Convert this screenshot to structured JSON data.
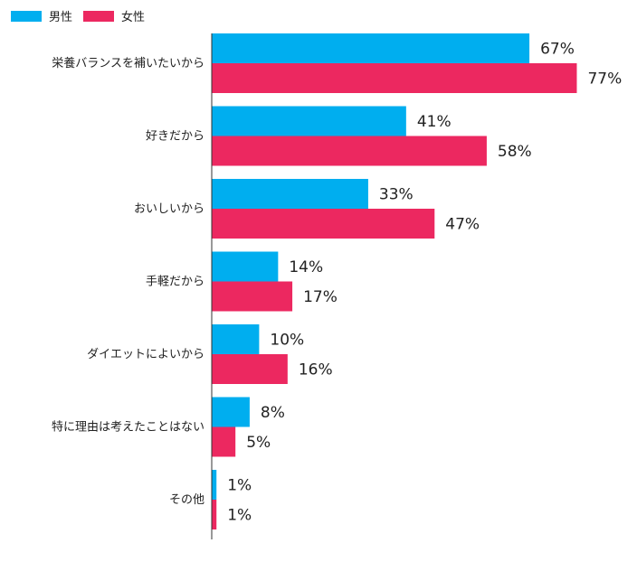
{
  "legend": {
    "male_label": "男性",
    "female_label": "女性"
  },
  "colors": {
    "male": "#00aeef",
    "female": "#ec2860",
    "axis": "#333333"
  },
  "chart_data": {
    "type": "bar",
    "orientation": "horizontal",
    "categories": [
      "栄養バランスを補いたいから",
      "好きだから",
      "おいしいから",
      "手軽だから",
      "ダイエットによいから",
      "特に理由は考えたことはない",
      "その他"
    ],
    "series": [
      {
        "name": "男性",
        "values": [
          67,
          41,
          33,
          14,
          10,
          8,
          1
        ]
      },
      {
        "name": "女性",
        "values": [
          77,
          58,
          47,
          17,
          16,
          5,
          1
        ]
      }
    ],
    "value_suffix": "%",
    "xlim": [
      0,
      100
    ],
    "legend_position": "top-left",
    "grid": false
  }
}
